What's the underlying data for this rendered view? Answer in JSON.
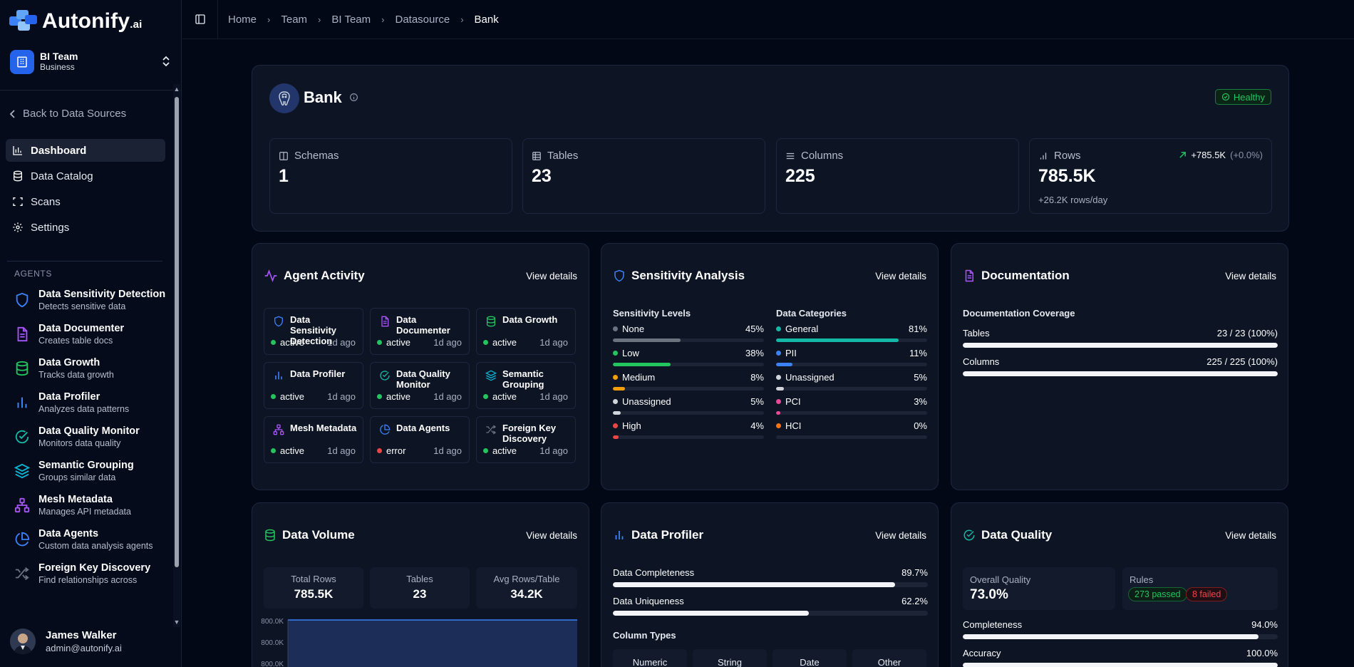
{
  "app": {
    "logo_text": "Autonify",
    "logo_suffix": ".ai"
  },
  "team": {
    "name": "BI Team",
    "plan": "Business"
  },
  "sidebar": {
    "back_label": "Back to Data Sources",
    "nav": [
      {
        "label": "Dashboard",
        "icon": "bar-chart-icon",
        "active": true
      },
      {
        "label": "Data Catalog",
        "icon": "database-icon"
      },
      {
        "label": "Scans",
        "icon": "scan-icon"
      },
      {
        "label": "Settings",
        "icon": "gear-icon"
      }
    ],
    "agents_heading": "AGENTS",
    "agents": [
      {
        "name": "Data Sensitivity Detection",
        "desc": "Detects sensitive data",
        "icon": "shield-icon",
        "color": "#3b82f6"
      },
      {
        "name": "Data Documenter",
        "desc": "Creates table docs",
        "icon": "document-icon",
        "color": "#a855f7"
      },
      {
        "name": "Data Growth",
        "desc": "Tracks data growth",
        "icon": "database-icon",
        "color": "#22c55e"
      },
      {
        "name": "Data Profiler",
        "desc": "Analyzes data patterns",
        "icon": "bar-chart-icon",
        "color": "#3b82f6"
      },
      {
        "name": "Data Quality Monitor",
        "desc": "Monitors data quality",
        "icon": "check-circle-icon",
        "color": "#14b8a6"
      },
      {
        "name": "Semantic Grouping",
        "desc": "Groups similar data",
        "icon": "layers-icon",
        "color": "#06b6d4"
      },
      {
        "name": "Mesh Metadata",
        "desc": "Manages API metadata",
        "icon": "network-icon",
        "color": "#a855f7"
      },
      {
        "name": "Data Agents",
        "desc": "Custom data analysis agents",
        "icon": "pie-chart-icon",
        "color": "#3b82f6"
      },
      {
        "name": "Foreign Key Discovery",
        "desc": "Find relationships across",
        "icon": "shuffle-icon",
        "color": "#6b7280"
      }
    ]
  },
  "user": {
    "name": "James Walker",
    "email": "admin@autonify.ai"
  },
  "breadcrumb": [
    "Home",
    "Team",
    "BI Team",
    "Datasource",
    "Bank"
  ],
  "datasource": {
    "name": "Bank",
    "status": "Healthy",
    "stats": {
      "schemas": {
        "label": "Schemas",
        "value": "1"
      },
      "tables": {
        "label": "Tables",
        "value": "23"
      },
      "columns": {
        "label": "Columns",
        "value": "225"
      },
      "rows": {
        "label": "Rows",
        "value": "785.5K",
        "delta": "+785.5K",
        "delta_pct": "(+0.0%)",
        "sub": "+26.2K rows/day"
      }
    }
  },
  "agent_activity": {
    "title": "Agent Activity",
    "view": "View details",
    "items": [
      {
        "name": "Data Sensitivity Detection",
        "status": "active",
        "ago": "1d ago",
        "icon": "shield-icon",
        "color": "#3b82f6"
      },
      {
        "name": "Data Documenter",
        "status": "active",
        "ago": "1d ago",
        "icon": "document-icon",
        "color": "#a855f7"
      },
      {
        "name": "Data Growth",
        "status": "active",
        "ago": "1d ago",
        "icon": "database-icon",
        "color": "#22c55e"
      },
      {
        "name": "Data Profiler",
        "status": "active",
        "ago": "1d ago",
        "icon": "bar-chart-icon",
        "color": "#3b82f6"
      },
      {
        "name": "Data Quality Monitor",
        "status": "active",
        "ago": "1d ago",
        "icon": "check-circle-icon",
        "color": "#14b8a6"
      },
      {
        "name": "Semantic Grouping",
        "status": "active",
        "ago": "1d ago",
        "icon": "layers-icon",
        "color": "#06b6d4"
      },
      {
        "name": "Mesh Metadata",
        "status": "active",
        "ago": "1d ago",
        "icon": "network-icon",
        "color": "#a855f7"
      },
      {
        "name": "Data Agents",
        "status": "error",
        "ago": "1d ago",
        "icon": "pie-chart-icon",
        "color": "#3b82f6"
      },
      {
        "name": "Foreign Key Discovery",
        "status": "active",
        "ago": "1d ago",
        "icon": "shuffle-icon",
        "color": "#6b7280"
      }
    ]
  },
  "sensitivity": {
    "title": "Sensitivity Analysis",
    "view": "View details",
    "levels_title": "Sensitivity Levels",
    "levels": [
      {
        "label": "None",
        "pct": "45%",
        "value": 45,
        "color": "#6b7280"
      },
      {
        "label": "Low",
        "pct": "38%",
        "value": 38,
        "color": "#22c55e"
      },
      {
        "label": "Medium",
        "pct": "8%",
        "value": 8,
        "color": "#f59e0b"
      },
      {
        "label": "Unassigned",
        "pct": "5%",
        "value": 5,
        "color": "#d1d5db"
      },
      {
        "label": "High",
        "pct": "4%",
        "value": 4,
        "color": "#ef4444"
      }
    ],
    "categories_title": "Data Categories",
    "categories": [
      {
        "label": "General",
        "pct": "81%",
        "value": 81,
        "color": "#14b8a6"
      },
      {
        "label": "PII",
        "pct": "11%",
        "value": 11,
        "color": "#3b82f6"
      },
      {
        "label": "Unassigned",
        "pct": "5%",
        "value": 5,
        "color": "#d1d5db"
      },
      {
        "label": "PCI",
        "pct": "3%",
        "value": 3,
        "color": "#ec4899"
      },
      {
        "label": "HCI",
        "pct": "0%",
        "value": 0,
        "color": "#f97316"
      }
    ]
  },
  "documentation": {
    "title": "Documentation",
    "view": "View details",
    "coverage_title": "Documentation Coverage",
    "rows": [
      {
        "label": "Tables",
        "value": "23 / 23 (100%)",
        "pct": 100
      },
      {
        "label": "Columns",
        "value": "225 / 225 (100%)",
        "pct": 100
      }
    ]
  },
  "data_volume": {
    "title": "Data Volume",
    "view": "View details",
    "stats": [
      {
        "label": "Total Rows",
        "value": "785.5K"
      },
      {
        "label": "Tables",
        "value": "23"
      },
      {
        "label": "Avg Rows/Table",
        "value": "34.2K"
      }
    ],
    "axis_labels": [
      "800.0K",
      "800.0K",
      "800.0K"
    ]
  },
  "profiler": {
    "title": "Data Profiler",
    "view": "View details",
    "metrics": [
      {
        "label": "Data Completeness",
        "value": "89.7%",
        "pct": 89.7
      },
      {
        "label": "Data Uniqueness",
        "value": "62.2%",
        "pct": 62.2
      }
    ],
    "types_title": "Column Types",
    "types": [
      "Numeric",
      "String",
      "Date",
      "Other"
    ]
  },
  "quality": {
    "title": "Data Quality",
    "view": "View details",
    "overall_label": "Overall Quality",
    "overall_value": "73.0%",
    "rules_label": "Rules",
    "passed": "273 passed",
    "failed": "8 failed",
    "metrics": [
      {
        "label": "Completeness",
        "value": "94.0%",
        "pct": 94
      },
      {
        "label": "Accuracy",
        "value": "100.0%",
        "pct": 100
      }
    ]
  }
}
